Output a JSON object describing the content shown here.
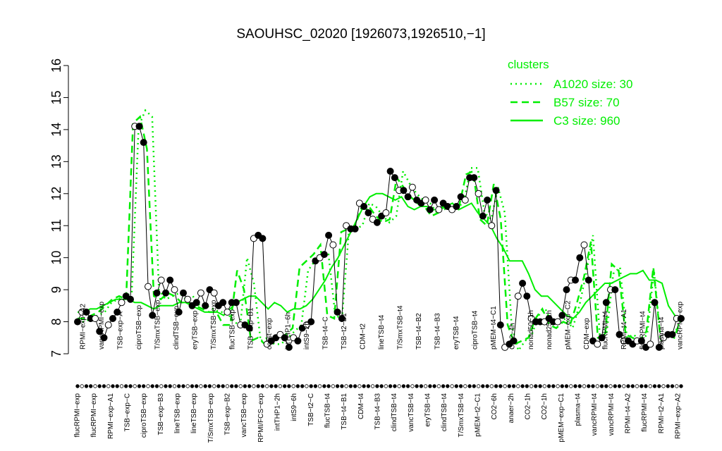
{
  "chart_data": {
    "type": "line",
    "title": "SAOUHSC_02020 [1926073,1926510,−1]",
    "ylim": [
      7,
      16
    ],
    "yticks": [
      7,
      8,
      9,
      10,
      11,
      12,
      13,
      14,
      15,
      16
    ],
    "bottom_labels": [
      "flucRPMI−exp",
      "flucRPMI−exp",
      "RPMI−exp−A1",
      "TSB−exp−C",
      "ciproTSB−exp",
      "TSB−exp−B3",
      "lineTSB−exp",
      "lineTSB−exp",
      "T/SmxTSB−exp",
      "TSB−exp−B2",
      "vancTSB−exp",
      "RPMI/FCS−exp",
      "intTHP1−2h",
      "intS9−6h",
      "TSB−t2−C",
      "flucTSB−t4",
      "TSB−t4−B1",
      "CDM−t4",
      "TSB−t4−B3",
      "clindTSB−t4",
      "vancTSB−t4",
      "eryTSB−t4",
      "clindTSB−t4",
      "T/SmxTSB−t4",
      "pMEM−t2−C1",
      "CO2−6h",
      "anaer−2h",
      "CO2−1h",
      "CO2−1h",
      "pMEM−exp−C1",
      "plasma−t4",
      "vancRPMI−t4",
      "vancRPMI−t4",
      "RPMI−t4−A2",
      "flucRPMI−t4",
      "RPMI−t2−A1",
      "RPMI−exp−A2"
    ],
    "top_labels": [
      "RPMI−exp−A2",
      "vancRPMI−exp",
      "TSB−exp−A",
      "ciproTSB−exp",
      "T/SmxTSB−exp",
      "clindTSB−exp",
      "eryTSB−exp",
      "T/SmxTSB−exp",
      "flucTSB−exp",
      "TSB−exp−B1",
      "colist−exp",
      "intTHP1−6h",
      "intS9−2h",
      "TSB−t4−C",
      "TSB−t2−B1",
      "CDM−t2",
      "lineTSB−t4",
      "T/SmxTSB−t4",
      "TSB−t4−B2",
      "TSB−t4−B3",
      "eryTSB−t4",
      "ciproTSB−t4",
      "pMEM−t4−C1",
      "CO2−4h",
      "nonad50−1h",
      "nonad25−1h",
      "pMEM−exp−C2",
      "CDM−exp",
      "flucRPMI−t4",
      "RPMI−t4−A1",
      "flucRPMI−t4",
      "plasma−t4",
      "vancRPMI−exp"
    ],
    "sample_values": [
      8.0,
      8.3,
      8.3,
      8.1,
      8.1,
      7.7,
      7.5,
      7.9,
      8.1,
      8.3,
      8.6,
      8.8,
      8.7,
      14.1,
      14.1,
      13.6,
      9.1,
      8.2,
      8.9,
      9.3,
      8.9,
      9.3,
      9.0,
      8.3,
      8.9,
      8.7,
      8.5,
      8.6,
      8.9,
      8.5,
      9.0,
      8.9,
      8.5,
      8.6,
      8.3,
      8.6,
      8.6,
      7.9,
      7.9,
      7.8,
      10.6,
      10.7,
      10.6,
      7.3,
      7.4,
      7.5,
      7.6,
      7.5,
      7.2,
      7.5,
      7.4,
      7.8,
      7.9,
      8.0,
      9.9,
      10.0,
      10.1,
      10.7,
      10.4,
      8.3,
      8.1,
      11.0,
      10.9,
      10.9,
      11.7,
      11.6,
      11.4,
      11.2,
      11.1,
      11.3,
      11.4,
      12.7,
      12.5,
      12.1,
      12.1,
      11.9,
      12.2,
      11.8,
      11.7,
      11.8,
      11.5,
      11.8,
      11.5,
      11.7,
      11.6,
      11.5,
      11.6,
      11.9,
      11.8,
      12.5,
      12.5,
      12.0,
      11.3,
      11.8,
      11.0,
      12.1,
      7.9,
      7.2,
      7.3,
      7.4,
      8.8,
      9.2,
      8.8,
      8.1,
      8.0,
      8.0,
      8.0,
      8.1,
      8.0,
      8.0,
      8.2,
      9.0,
      9.3,
      9.3,
      10.0,
      10.4,
      9.3,
      7.4,
      7.3,
      7.5,
      8.6,
      9.0,
      9.0,
      7.6,
      7.4,
      7.4,
      7.3,
      7.4,
      7.4,
      7.2,
      7.3,
      8.6,
      7.2,
      7.5,
      7.6,
      7.6,
      8.1,
      8.1
    ],
    "dot_marks": "filled",
    "series": [
      {
        "name": "A1020 size: 30",
        "style": "dotted",
        "values": [
          8.0,
          8.0,
          8.1,
          8.2,
          8.3,
          8.6,
          8.7,
          8.8,
          8.9,
          14.1,
          14.6,
          14.4,
          9.0,
          8.7,
          8.8,
          8.9,
          8.7,
          8.8,
          8.5,
          8.5,
          8.4,
          8.3,
          8.3,
          8.0,
          7.9,
          10.0,
          9.2,
          7.4,
          7.5,
          7.3,
          7.3,
          7.5,
          7.7,
          7.9,
          9.6,
          9.9,
          10.1,
          10.1,
          8.2,
          8.1,
          10.8,
          10.9,
          11.0,
          11.7,
          11.6,
          11.3,
          11.1,
          11.3,
          12.7,
          12.3,
          12.0,
          11.8,
          11.7,
          11.4,
          11.5,
          11.6,
          11.5,
          11.8,
          12.8,
          12.8,
          11.4,
          11.2,
          12.2,
          11.4,
          7.9,
          7.1,
          7.4,
          7.6,
          8.2,
          8.4,
          7.9,
          8.0,
          8.1,
          7.8,
          8.5,
          9.5,
          10.7,
          7.6,
          7.6,
          9.5,
          9.7,
          7.5,
          7.6,
          7.4,
          7.6,
          9.6,
          7.4,
          7.5,
          7.6,
          8.1
        ]
      },
      {
        "name": "B57 size: 70",
        "style": "dashed",
        "values": [
          8.1,
          8.1,
          8.2,
          8.3,
          8.5,
          8.7,
          8.8,
          8.7,
          14.2,
          14.4,
          13.4,
          8.8,
          8.7,
          8.9,
          8.8,
          8.6,
          8.6,
          8.5,
          8.4,
          8.3,
          8.3,
          7.9,
          7.9,
          9.6,
          9.0,
          7.4,
          7.5,
          7.3,
          7.4,
          7.5,
          7.6,
          7.8,
          9.7,
          9.9,
          10.1,
          10.4,
          8.2,
          8.1,
          10.8,
          10.9,
          11.0,
          11.6,
          11.6,
          11.3,
          11.1,
          11.2,
          12.5,
          12.2,
          11.9,
          11.7,
          11.6,
          11.3,
          11.4,
          11.7,
          11.5,
          11.6,
          12.6,
          12.7,
          11.2,
          11.0,
          12.3,
          11.2,
          7.9,
          7.3,
          7.4,
          7.5,
          8.1,
          8.4,
          7.9,
          7.8,
          8.0,
          7.9,
          8.6,
          9.4,
          10.5,
          7.5,
          7.5,
          9.8,
          9.6,
          7.6,
          7.5,
          7.4,
          7.7,
          9.7,
          7.5,
          7.6,
          7.5,
          8.1
        ]
      },
      {
        "name": "C3 size: 960",
        "style": "solid",
        "values": [
          8.3,
          8.3,
          8.4,
          8.4,
          8.5,
          8.6,
          8.7,
          8.7,
          8.7,
          8.6,
          8.6,
          8.5,
          8.4,
          8.5,
          8.5,
          8.5,
          8.6,
          8.6,
          8.5,
          8.4,
          8.3,
          8.3,
          8.3,
          8.2,
          8.4,
          8.6,
          8.7,
          8.8,
          8.8,
          8.6,
          8.4,
          8.6,
          8.5,
          8.3,
          8.4,
          8.4,
          8.5,
          8.7,
          9.0,
          9.3,
          9.7,
          10.0,
          10.4,
          10.8,
          11.2,
          11.6,
          11.9,
          12.0,
          12.0,
          11.9,
          11.8,
          11.9,
          11.6,
          11.5,
          11.6,
          11.6,
          11.5,
          11.5,
          11.6,
          11.7,
          11.5,
          11.6,
          11.7,
          11.4,
          11.2,
          11.0,
          10.6,
          10.3,
          9.9,
          9.9,
          9.9,
          9.5,
          9.0,
          8.8,
          8.8,
          8.6,
          8.4,
          8.2,
          8.1,
          8.3,
          8.6,
          8.8,
          9.0,
          9.2,
          9.2,
          9.3,
          9.4,
          9.5,
          9.5,
          9.6,
          9.3,
          9.3,
          9.2,
          8.5,
          8.2,
          8.1
        ]
      }
    ],
    "legend": {
      "title": "clusters",
      "position": "top-right",
      "color": "#00ee00"
    }
  },
  "colors": {
    "line_color": "#000000",
    "cluster_color": "#00ee00"
  }
}
